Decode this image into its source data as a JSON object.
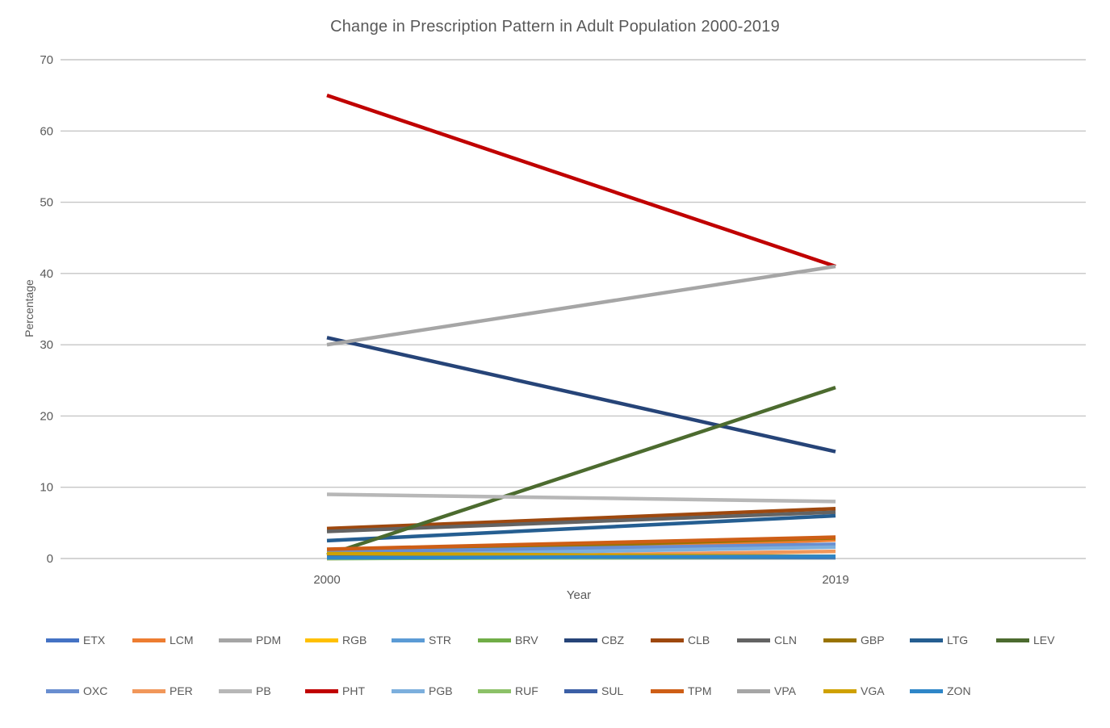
{
  "title": "Change in Prescription Pattern in Adult Population 2000-2019",
  "style": {
    "background": "#ffffff",
    "text_color": "#595959",
    "gridline_color": "#c6c6c6",
    "accent_red": "#c00000"
  },
  "chart_data": {
    "type": "line",
    "title": "Change in Prescription Pattern in Adult Population 2000-2019",
    "xlabel": "Year",
    "ylabel": "Percentage",
    "categories": [
      "2000",
      "2019"
    ],
    "ylim": [
      0,
      70
    ],
    "yticks": [
      0,
      10,
      20,
      30,
      40,
      50,
      60,
      70
    ],
    "grid": true,
    "legend_position": "bottom",
    "legend_rows": [
      [
        "ETX",
        "LCM",
        "PDM",
        "RGB",
        "STR",
        "BRV",
        "CBZ",
        "CLB",
        "CLN",
        "GBP",
        "LTG",
        "LEV"
      ],
      [
        "OXC",
        "PER",
        "PB",
        "PHT",
        "PGB",
        "RUF",
        "SUL",
        "TPM",
        "VPA",
        "VGA",
        "ZON"
      ]
    ],
    "series": [
      {
        "name": "ETX",
        "color": "#4472C4",
        "values": [
          0.3,
          0.2
        ]
      },
      {
        "name": "LCM",
        "color": "#ED7D31",
        "values": [
          0.2,
          2.6
        ]
      },
      {
        "name": "PDM",
        "color": "#A5A5A5",
        "values": [
          0.3,
          0.1
        ]
      },
      {
        "name": "RGB",
        "color": "#FFC000",
        "values": [
          0.1,
          0.1
        ]
      },
      {
        "name": "STR",
        "color": "#5B9BD5",
        "values": [
          0.1,
          0.1
        ]
      },
      {
        "name": "BRV",
        "color": "#70AD47",
        "values": [
          0.0,
          0.3
        ]
      },
      {
        "name": "CBZ",
        "color": "#264478",
        "values": [
          31,
          15
        ]
      },
      {
        "name": "CLB",
        "color": "#9E480E",
        "values": [
          4.2,
          7
        ]
      },
      {
        "name": "CLN",
        "color": "#636363",
        "values": [
          3.8,
          6.5
        ]
      },
      {
        "name": "GBP",
        "color": "#997300",
        "values": [
          0.8,
          2.9
        ]
      },
      {
        "name": "LTG",
        "color": "#255E91",
        "values": [
          2.5,
          6
        ]
      },
      {
        "name": "LEV",
        "color": "#4C6B2F",
        "values": [
          0.5,
          24
        ]
      },
      {
        "name": "OXC",
        "color": "#698ED0",
        "values": [
          0.9,
          2
        ]
      },
      {
        "name": "PER",
        "color": "#F1975A",
        "values": [
          0.0,
          1
        ]
      },
      {
        "name": "PB",
        "color": "#B7B7B7",
        "values": [
          9,
          8
        ]
      },
      {
        "name": "PHT",
        "color": "#C00000",
        "values": [
          65,
          41
        ]
      },
      {
        "name": "PGB",
        "color": "#7CAFDD",
        "values": [
          0.4,
          1.6
        ]
      },
      {
        "name": "RUF",
        "color": "#8CC168",
        "values": [
          0.0,
          0.2
        ]
      },
      {
        "name": "SUL",
        "color": "#3B5FA6",
        "values": [
          0.2,
          0.2
        ]
      },
      {
        "name": "TPM",
        "color": "#CE5E16",
        "values": [
          1.3,
          3
        ]
      },
      {
        "name": "VPA",
        "color": "#A6A6A6",
        "values": [
          30,
          41
        ]
      },
      {
        "name": "VGA",
        "color": "#CFA100",
        "values": [
          0.7,
          0.3
        ]
      },
      {
        "name": "ZON",
        "color": "#2E86C8",
        "values": [
          0.1,
          0.3
        ]
      }
    ]
  }
}
